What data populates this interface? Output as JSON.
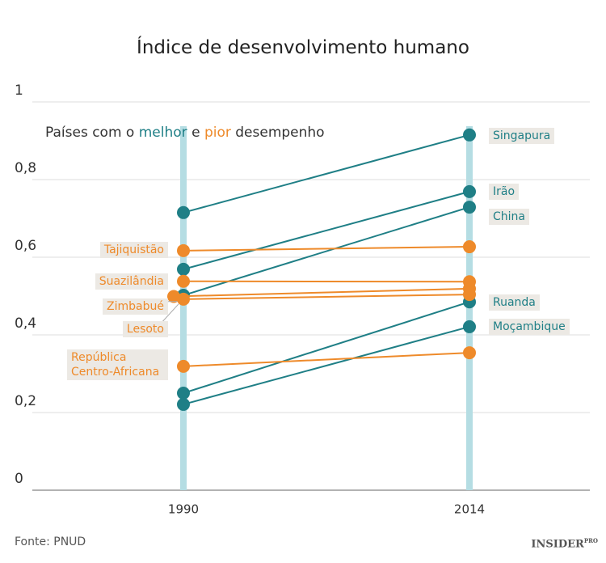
{
  "chart_data": {
    "type": "slope",
    "title": "Índice de desenvolvimento humano",
    "subtitle": [
      "Países com o",
      "melhor",
      "e",
      "pior",
      "desempenho"
    ],
    "source": "Fonte: PNUD",
    "logo": "INSIDER",
    "logo_sup": "PRO",
    "categories": [
      "1990",
      "2014"
    ],
    "ylim": [
      0,
      1
    ],
    "yticks": [
      0,
      {
        "value": 0.2,
        "label": "0,2"
      },
      {
        "value": 0.4,
        "label": "0,4"
      },
      {
        "value": 0.6,
        "label": "0,6"
      },
      {
        "value": 0.8,
        "label": "0,8"
      },
      1
    ],
    "grid": true,
    "series": [
      {
        "name": "Singapura",
        "color": "#1f7f86",
        "values": [
          0.715,
          0.915
        ]
      },
      {
        "name": "Irão",
        "color": "#1f7f86",
        "values": [
          0.569,
          0.769
        ]
      },
      {
        "name": "China",
        "color": "#1f7f86",
        "values": [
          0.502,
          0.729
        ]
      },
      {
        "name": "Ruanda",
        "color": "#1f7f86",
        "values": [
          0.25,
          0.485
        ]
      },
      {
        "name": "Moçambique",
        "color": "#1f7f86",
        "values": [
          0.221,
          0.421
        ]
      },
      {
        "name": "Tajiquistão",
        "color": "#ee8a2a",
        "values": [
          0.617,
          0.627
        ]
      },
      {
        "name": "Suazilândia",
        "color": "#ee8a2a",
        "values": [
          0.538,
          0.537
        ]
      },
      {
        "name": "Zimbabué",
        "color": "#ee8a2a",
        "values": [
          0.499,
          0.519
        ]
      },
      {
        "name": "Lesoto",
        "color": "#ee8a2a",
        "values": [
          0.492,
          0.504
        ]
      },
      {
        "name": "República Centro-Africana",
        "color": "#ee8a2a",
        "values": [
          0.319,
          0.354
        ]
      }
    ]
  }
}
